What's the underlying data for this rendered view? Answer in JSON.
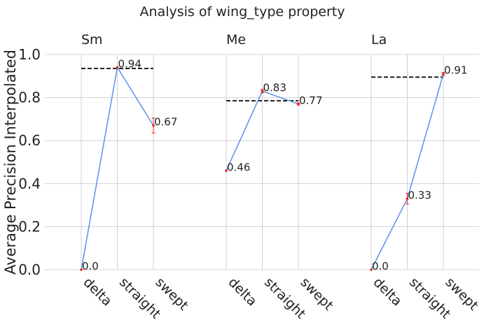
{
  "chart_data": {
    "type": "line",
    "title": "Analysis of wing_type property",
    "ylabel": "Average Precision Interpolated",
    "xlabel": "",
    "ylim": [
      0,
      1.0
    ],
    "yticks": [
      "0.0",
      "0.2",
      "0.4",
      "0.6",
      "0.8",
      "1.0"
    ],
    "grid": true,
    "categories": [
      "delta",
      "straight",
      "swept"
    ],
    "colors": {
      "line": "#6495ED",
      "dashed": "#000000",
      "errorbar": "#E8251F",
      "grid": "#D0D0D0"
    },
    "groups": [
      {
        "name": "Sm",
        "values": [
          0.0,
          0.94,
          0.67
        ],
        "labels": [
          "0.0",
          "0.94",
          "0.67"
        ],
        "errors": [
          0,
          0,
          0.035
        ],
        "average": 0.935
      },
      {
        "name": "Me",
        "values": [
          0.46,
          0.83,
          0.77
        ],
        "labels": [
          "0.46",
          "0.83",
          "0.77"
        ],
        "errors": [
          0,
          0.008,
          0.005
        ],
        "average": 0.785
      },
      {
        "name": "La",
        "values": [
          0.0,
          0.33,
          0.91
        ],
        "labels": [
          "0.0",
          "0.33",
          "0.91"
        ],
        "errors": [
          0,
          0.025,
          0.007
        ],
        "average": 0.895
      }
    ]
  }
}
